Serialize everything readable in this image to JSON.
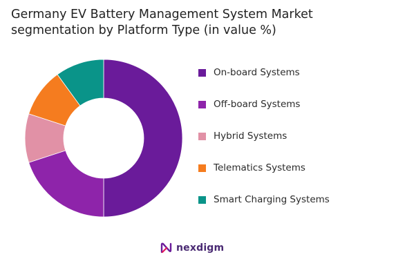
{
  "title_lines": [
    "Germany EV Battery Management System Market",
    "segmentation by Platform Type (in value %)"
  ],
  "chart_data": {
    "type": "pie",
    "style": "donut",
    "categories": [
      "On-board Systems",
      "Off-board Systems",
      "Hybrid Systems",
      "Telematics Systems",
      "Smart Charging Systems"
    ],
    "values": [
      50,
      20,
      10,
      10,
      10
    ],
    "colors": [
      "#6a1b9a",
      "#8e24aa",
      "#e191a6",
      "#f57c1f",
      "#0a9489"
    ],
    "legend_position": "right"
  },
  "brand": {
    "name": "nexdigm",
    "icon": "nexdigm-logo-icon"
  }
}
